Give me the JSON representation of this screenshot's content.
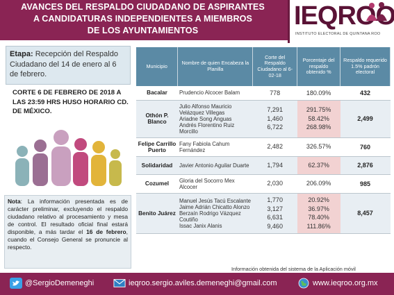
{
  "header": {
    "title_lines": [
      "AVANCES DEL RESPALDO CIUDADANO DE ASPIRANTES",
      "A CANDIDATURAS INDEPENDIENTES A MIEMBROS",
      "DE LOS AYUNTAMIENTOS"
    ],
    "logo_text": "IEQROO",
    "logo_subtitle": "INSTITUTO ELECTORAL DE QUINTANA ROO"
  },
  "etapa": {
    "label": "Etapa:",
    "text": "Recepción del Respaldo Ciudadano del 14 de enero al 6 de febrero."
  },
  "corte": "CORTE 6 DE FEBRERO DE 2018 A LAS 23:59 HRS HUSO HORARIO CD. DE MÉXICO.",
  "nota": {
    "label": "Nota",
    "text1": ": La información presentada es de carácter preliminar, excluyendo el respaldo ciudadano relativo al procesamiento y mesa de control. El resultado oficial final estará disponible, a más tardar el ",
    "bold1": "16 de febrero",
    "text2": ", cuando el Consejo General se pronuncie al respecto."
  },
  "table": {
    "headers": [
      "Municipio",
      "Nombre de quien Encabeza la Planilla",
      "Corte del Respaldo Ciudadano al 6-02-18",
      "Porcentaje del respaldo obtenido %",
      "Respaldo requerido 1.5% padrón electoral"
    ],
    "rows": [
      {
        "municipio": "Bacalar",
        "candidatos": [
          "Prudencio Alcocer Balam"
        ],
        "cortes": [
          "778"
        ],
        "porcentajes": [
          "180.09%"
        ],
        "requerido": "432"
      },
      {
        "municipio": "Othón P. Blanco",
        "candidatos": [
          "Julio Alfonso Mauricio Velázquez Villegas",
          "Ariadne Song Anguas",
          "Andrés Florentino Ruiz Morcillo"
        ],
        "cortes": [
          "7,291",
          "1,460",
          "6,722"
        ],
        "porcentajes": [
          "291.75%",
          "58.42%",
          "268.98%"
        ],
        "requerido": "2,499"
      },
      {
        "municipio": "Felipe Carrillo Puerto",
        "candidatos": [
          "Fany Fabiola Cahum Fernández"
        ],
        "cortes": [
          "2,482"
        ],
        "porcentajes": [
          "326.57%"
        ],
        "requerido": "760"
      },
      {
        "municipio": "Solidaridad",
        "candidatos": [
          "Javier Antonio Aguilar Duarte"
        ],
        "cortes": [
          "1,794"
        ],
        "porcentajes": [
          "62.37%"
        ],
        "requerido": "2,876"
      },
      {
        "municipio": "Cozumel",
        "candidatos": [
          "Gloria del Socorro Mex Alcocer"
        ],
        "cortes": [
          "2,030"
        ],
        "porcentajes": [
          "206.09%"
        ],
        "requerido": "985"
      },
      {
        "municipio": "Benito Juárez",
        "candidatos": [
          "Manuel Jesús Tacú Escalante",
          "Jaime Adrián Chicatto Alonzo",
          "Berzaín Rodrigo Vázquez Coutiño",
          "Issac Janix Alanis"
        ],
        "cortes": [
          "1,770",
          "3,127",
          "6,631",
          "9,460"
        ],
        "porcentajes": [
          "20.92%",
          "36.97%",
          "78.40%",
          "111.86%"
        ],
        "requerido": "8,457"
      }
    ]
  },
  "footnote": "Información obtenida del sistema de la Aplicación móvil",
  "footer": {
    "twitter": "@SergioDemeneghi",
    "email": "ieqroo.sergio.aviles.demeneghi@gmail.com",
    "web": "www.ieqroo.org.mx"
  },
  "colors": {
    "brand": "#8a2454",
    "table_header": "#5b8aa5",
    "percent_cell": "#f4dada"
  }
}
